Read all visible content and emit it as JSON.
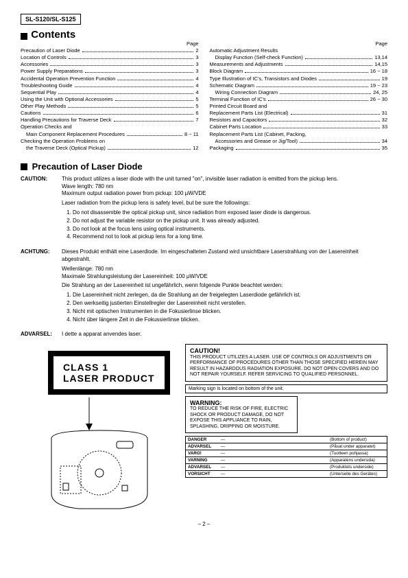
{
  "model": "SL-S120/SL-S125",
  "contents_heading": "Contents",
  "page_label": "Page",
  "toc_left": [
    {
      "label": "Precaution of Laser Diode",
      "page": "2",
      "indent": 0
    },
    {
      "label": "Location of Controls",
      "page": "3",
      "indent": 0
    },
    {
      "label": "Accessories",
      "page": "3",
      "indent": 0
    },
    {
      "label": "Power Supply Preparations",
      "page": "3",
      "indent": 0
    },
    {
      "label": "Accidental Operation Prevention Function",
      "page": "4",
      "indent": 0
    },
    {
      "label": "Troubleshooting Guide",
      "page": "4",
      "indent": 0
    },
    {
      "label": "Sequential Play",
      "page": "4",
      "indent": 0
    },
    {
      "label": "Using the Unit with Optional Accessories",
      "page": "5",
      "indent": 0
    },
    {
      "label": "Other Play Methods",
      "page": "5",
      "indent": 0
    },
    {
      "label": "Cautions",
      "page": "6",
      "indent": 0
    },
    {
      "label": "Handling Precautions for Traverse Deck",
      "page": "7",
      "indent": 0
    },
    {
      "label": "Operation Checks and",
      "page": "",
      "indent": 0
    },
    {
      "label": "Main Component Replacement Procedures",
      "page": "8 ~ 11",
      "indent": 1
    },
    {
      "label": "Checking the Operation Problems on",
      "page": "",
      "indent": 0
    },
    {
      "label": "the Traverse Deck (Optical Pickup)",
      "page": "12",
      "indent": 1
    }
  ],
  "toc_right": [
    {
      "label": "Automatic Adjustment Results",
      "page": "",
      "indent": 0
    },
    {
      "label": "Display Function (Self-check Function)",
      "page": "13,14",
      "indent": 1
    },
    {
      "label": "Measurements and Adjustments",
      "page": "14,15",
      "indent": 0
    },
    {
      "label": "Block Diagram",
      "page": "16 ~ 18",
      "indent": 0
    },
    {
      "label": "Type Illustration of IC's, Transistors and Diodes",
      "page": "19",
      "indent": 0
    },
    {
      "label": "Schematic Diagram",
      "page": "19 ~ 23",
      "indent": 0
    },
    {
      "label": "Wiring Connection Diagram",
      "page": "24, 25",
      "indent": 1
    },
    {
      "label": "Terminal Function of IC's",
      "page": "26 ~ 30",
      "indent": 0
    },
    {
      "label": "Printed Circuit Board and",
      "page": "",
      "indent": 0
    },
    {
      "label": "Replacement Parts List (Electrical)",
      "page": "31",
      "indent": 0
    },
    {
      "label": "Resistors and Capacitors",
      "page": "32",
      "indent": 0
    },
    {
      "label": "Cabinet Parts Location",
      "page": "33",
      "indent": 0
    },
    {
      "label": "Replacement Parts List (Cabinet, Packing,",
      "page": "",
      "indent": 0
    },
    {
      "label": "Accessories and Grease or Jig/Tool)",
      "page": "34",
      "indent": 1
    },
    {
      "label": "Packaging",
      "page": "35",
      "indent": 0
    }
  ],
  "precaution_heading": "Precaution of Laser Diode",
  "caution_en": {
    "label": "CAUTION:",
    "lines": [
      "This product utilizes a laser diode with the unit turned \"on\", invisible laser radiation is emitted from the pickup lens.",
      "Wave length: 780 nm",
      "Maximum output radiation power from pickup: 100 µW/VDE",
      "Laser radiation from the pickup lens is safety level, but be sure the followings:"
    ],
    "items": [
      "Do not disassemble the optical pickup unit, since radiation from exposed laser diode is dangerous.",
      "Do not adjust the variable resistor on the pickup unit.  It was already adjusted.",
      "Do not look at the focus lens using optical instruments.",
      "Recommend not to look at pickup lens for a long time."
    ]
  },
  "caution_de": {
    "label": "ACHTUNG:",
    "lines": [
      "Dieses Produkt enthält eine Laserdiode.  Im eingeschalteten Zustand wird unsichtbare Laserstrahlung von der Lasereinheit abgestrahlt.",
      "Wellenlänge: 780 nm",
      "Maximale Strahlungsleistung der Lasereinheit: 100 µW/VDE",
      "Die Strahlung an der Lasereinheit ist ungefährlich, wenn folgende Punkte beachtet werden:"
    ],
    "items": [
      "Die Lasereinheit nicht zerlegen, da die Strahlung an der freigelegten Laserdiode gefährlich ist.",
      "Den werkseitig justierten Einstellregler der Lasereinheit nicht verstellen.",
      "Nicht mit optischen Instrumenten in die Fokusierlinse blicken.",
      "Nicht über längere Zeit in die Fokussierlinse blicken."
    ]
  },
  "advarsel": {
    "label": "ADVARSEL:",
    "text": "I dette a apparat anvendes laser."
  },
  "class1_label": "CLASS 1\nLASER PRODUCT",
  "caution_box": {
    "title": "CAUTION!",
    "body": "THIS PRODUCT UTILIZES A LASER. USE OF CONTROLS OR ADJUSTMENTS OR PERFORMANCE OF PROCEDURES OTHER THAN THOSE SPECIFIED HEREIN MAY RESULT IN HAZARDOUS RADIATION EXPOSURE. DO NOT OPEN COVERS AND DO NOT REPAIR YOURSELF. REFER SERVICING TO QUALIFIED PERSONNEL."
  },
  "marking_note": "Marking sign is located on bottom of the unit.",
  "warning_box": {
    "title": "WARNING:",
    "body": "TO REDUCE THE RISK OF FIRE, ELECTRIC SHOCK OR PRODUCT DAMAGE, DO NOT EXPOSE THIS APPLIANCE TO RAIN, SPLASHING, DRIPPING OR MOISTURE."
  },
  "lang_rows": [
    {
      "lang": "DANGER",
      "mid": "—",
      "loc": "(Bottom of product)"
    },
    {
      "lang": "ADVARSEL",
      "mid": "—",
      "loc": "(Påsat under apparatet)"
    },
    {
      "lang": "VARO!",
      "mid": "—",
      "loc": "(Tuotteen pohjassa)"
    },
    {
      "lang": "VARNING",
      "mid": "—",
      "loc": "(Apparatens undersida)"
    },
    {
      "lang": "ADVARSEL",
      "mid": "—",
      "loc": "(Produktets underside)"
    },
    {
      "lang": "VORSICHT",
      "mid": "—",
      "loc": "(Unterseite des Gerätes)"
    }
  ],
  "page_number": "– 2 –"
}
